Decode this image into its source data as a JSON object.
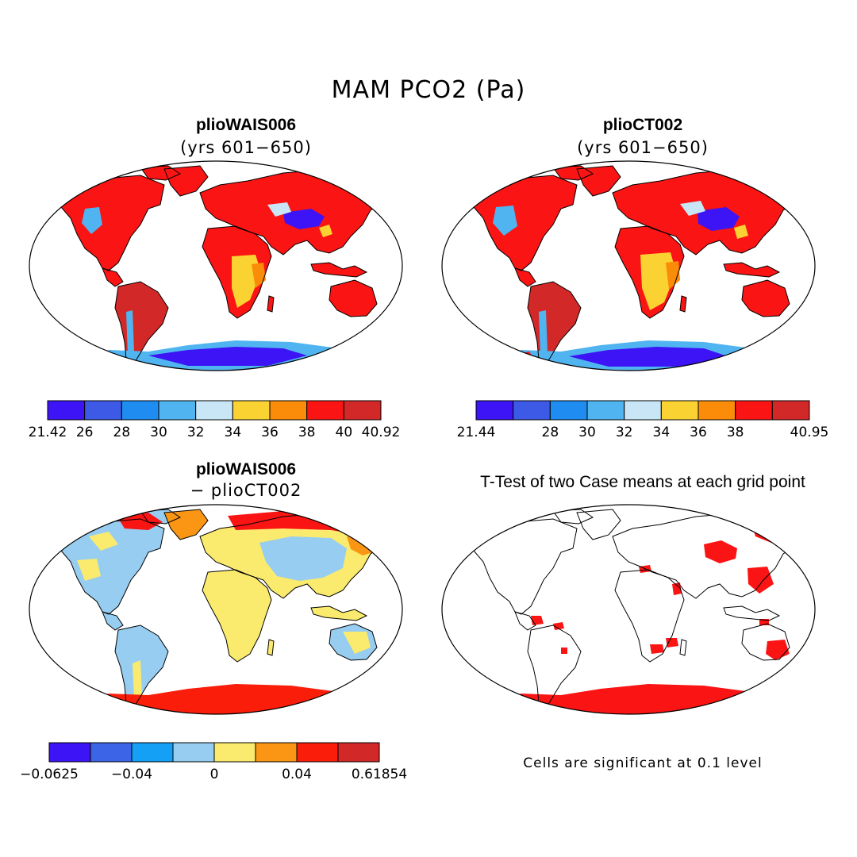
{
  "title": "MAM PCO2 (Pa)",
  "panels": [
    {
      "id": "p1",
      "title": "plioWAIS006",
      "subtitle": "(yrs 601−650)"
    },
    {
      "id": "p2",
      "title": "plioCT002",
      "subtitle": "(yrs 601−650)"
    },
    {
      "id": "p3",
      "title": "plioWAIS006",
      "subtitle": "− plioCT002"
    },
    {
      "id": "p4",
      "title": "T-Test of two Case means at each grid point",
      "subtitle": ""
    }
  ],
  "colorbars": [
    {
      "colors": [
        "#3c14f5",
        "#3c5ae6",
        "#1e8cf0",
        "#50b4f0",
        "#c8e6f5",
        "#fad232",
        "#fa8c0a",
        "#fa1414",
        "#d22828"
      ],
      "labels": [
        {
          "text": "21.42",
          "at": 0
        },
        {
          "text": "26",
          "at": 1
        },
        {
          "text": "28",
          "at": 2
        },
        {
          "text": "30",
          "at": 3
        },
        {
          "text": "32",
          "at": 4
        },
        {
          "text": "34",
          "at": 5
        },
        {
          "text": "36",
          "at": 6
        },
        {
          "text": "38",
          "at": 7
        },
        {
          "text": "40",
          "at": 8
        },
        {
          "text": "40.92",
          "at": 9
        }
      ]
    },
    {
      "colors": [
        "#3c14f5",
        "#3c5ae6",
        "#1e8cf0",
        "#50b4f0",
        "#c8e6f5",
        "#fad232",
        "#fa8c0a",
        "#fa1414",
        "#d22828"
      ],
      "labels": [
        {
          "text": "21.44",
          "at": 0
        },
        {
          "text": "28",
          "at": 2
        },
        {
          "text": "30",
          "at": 3
        },
        {
          "text": "32",
          "at": 4
        },
        {
          "text": "34",
          "at": 5
        },
        {
          "text": "36",
          "at": 6
        },
        {
          "text": "38",
          "at": 7
        },
        {
          "text": "40.95",
          "at": 9
        }
      ]
    },
    {
      "colors": [
        "#3c14f5",
        "#3c64e6",
        "#14a0f5",
        "#96cdf0",
        "#faeb6e",
        "#fa9614",
        "#fa1e0a",
        "#d22828"
      ],
      "labels": [
        {
          "text": "−0.0625",
          "at": 0
        },
        {
          "text": "−0.04",
          "at": 2
        },
        {
          "text": "0",
          "at": 4
        },
        {
          "text": "0.04",
          "at": 6
        },
        {
          "text": "0.61854",
          "at": 8
        }
      ]
    }
  ],
  "note": "Cells are significant at 0.1 level",
  "map_colors": {
    "ocean": "#ffffff",
    "coast": "#000000",
    "land_warm": "#fa1414",
    "land_dark": "#d22828",
    "land_orange": "#fa8c0a",
    "land_yellow": "#fad232",
    "land_lightblue": "#96cdf0",
    "land_blue": "#3c14f5",
    "diff_yellow": "#faeb6e",
    "significant": "#fa1414"
  }
}
